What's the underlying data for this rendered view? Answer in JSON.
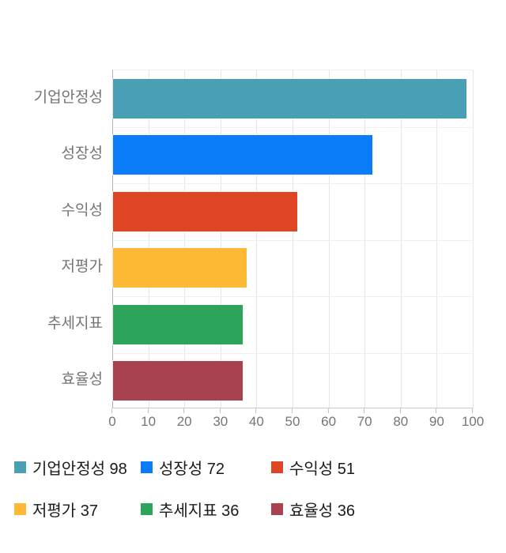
{
  "chart_data": {
    "type": "bar",
    "orientation": "horizontal",
    "title": "",
    "categories": [
      "기업안정성",
      "성장성",
      "수익성",
      "저평가",
      "추세지표",
      "효율성"
    ],
    "values": [
      98,
      72,
      51,
      37,
      36,
      36
    ],
    "bar_colors": [
      "#49A0B5",
      "#0B7CF8",
      "#DF4425",
      "#FDB933",
      "#2CA55B",
      "#A8424F"
    ],
    "xlabel": "",
    "ylabel": "",
    "xlim": [
      0,
      100
    ],
    "x_ticks": [
      0,
      10,
      20,
      30,
      40,
      50,
      60,
      70,
      80,
      90,
      100
    ],
    "grid": "vertical gridlines at every 10 units, faint horizontal row separators",
    "legend_position": "bottom",
    "legend": [
      {
        "label": "기업안정성",
        "value": 98,
        "color": "#49A0B5"
      },
      {
        "label": "성장성",
        "value": 72,
        "color": "#0B7CF8"
      },
      {
        "label": "수익성",
        "value": 51,
        "color": "#DF4425"
      },
      {
        "label": "저평가",
        "value": 37,
        "color": "#FDB933"
      },
      {
        "label": "추세지표",
        "value": 36,
        "color": "#2CA55B"
      },
      {
        "label": "효율성",
        "value": 36,
        "color": "#A8424F"
      }
    ]
  },
  "colors": {
    "background": "#FFFFFF",
    "axis_text": "#757575",
    "legend_text": "#1A1A1A",
    "gridline_vertical": "#E6E6E6",
    "gridline_horizontal": "#F0F0F0",
    "axis_line": "#B3B3B3",
    "baseline": "#C9C9C9"
  }
}
